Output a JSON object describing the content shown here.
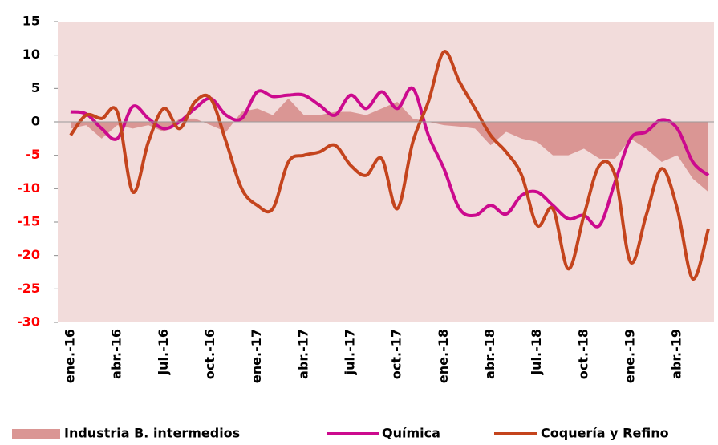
{
  "chart_data": {
    "type": "line",
    "categories": [
      "ene.-16",
      null,
      null,
      "abr.-16",
      null,
      null,
      "jul.-16",
      null,
      null,
      "oct.-16",
      null,
      null,
      "ene.-17",
      null,
      null,
      "abr.-17",
      null,
      null,
      "jul.-17",
      null,
      null,
      "oct.-17",
      null,
      null,
      "ene.-18",
      null,
      null,
      "abr.-18",
      null,
      null,
      "jul.-18",
      null,
      null,
      "oct.-18",
      null,
      null,
      "ene.-19",
      null,
      null,
      "abr.-19",
      null,
      null
    ],
    "series": [
      {
        "name": "Industria B. intermedios",
        "kind": "area",
        "color": "#da9694",
        "values": [
          -1,
          -0.5,
          -2.5,
          -0.5,
          -1,
          -0.5,
          -1.5,
          0.5,
          0.5,
          -0.5,
          -1.5,
          1.5,
          2,
          1,
          3.5,
          1,
          1,
          1.5,
          1.5,
          1,
          2,
          3,
          0.5,
          0,
          -0.5,
          -0.7,
          -1,
          -3.5,
          -1.5,
          -2.5,
          -3,
          -5,
          -5,
          -4,
          -5.5,
          -5.5,
          -2.5,
          -4,
          -6,
          -5,
          -8.5,
          -10.5
        ]
      },
      {
        "name": "Química",
        "kind": "line",
        "color": "#cc0a8e",
        "values": [
          1.5,
          1.2,
          -1,
          -2.5,
          2.3,
          0.5,
          -1,
          0,
          2,
          3.5,
          1,
          0.5,
          4.5,
          3.8,
          4,
          4,
          2.5,
          1,
          4,
          2,
          4.5,
          2,
          5,
          -2,
          -7,
          -13,
          -14,
          -12.5,
          -13.8,
          -11,
          -10.5,
          -12.5,
          -14.5,
          -14,
          -15.5,
          -9,
          -2.5,
          -1.5,
          0.3,
          -1,
          -6,
          -8
        ]
      },
      {
        "name": "Coquería y Refino",
        "kind": "line",
        "color": "#c4441d",
        "values": [
          -2,
          1,
          0.5,
          1.5,
          -10.5,
          -3,
          2,
          -1,
          3,
          3.5,
          -3,
          -10,
          -12.5,
          -13,
          -6,
          -5,
          -4.5,
          -3.5,
          -6.5,
          -8,
          -5.5,
          -13,
          -3,
          3,
          10.5,
          6,
          2,
          -2,
          -4.5,
          -8,
          -15.5,
          -13,
          -22,
          -14,
          -6.5,
          -8,
          -21,
          -14,
          -7,
          -13,
          -23.5,
          -16
        ]
      }
    ],
    "ylim": [
      -30,
      15
    ],
    "yticks": [
      15,
      10,
      5,
      0,
      -5,
      -10,
      -15,
      -20,
      -25,
      -30
    ],
    "negative_tick_color": "#ff0000",
    "plot_background": "#f2dcdb",
    "legend": "bottom"
  }
}
